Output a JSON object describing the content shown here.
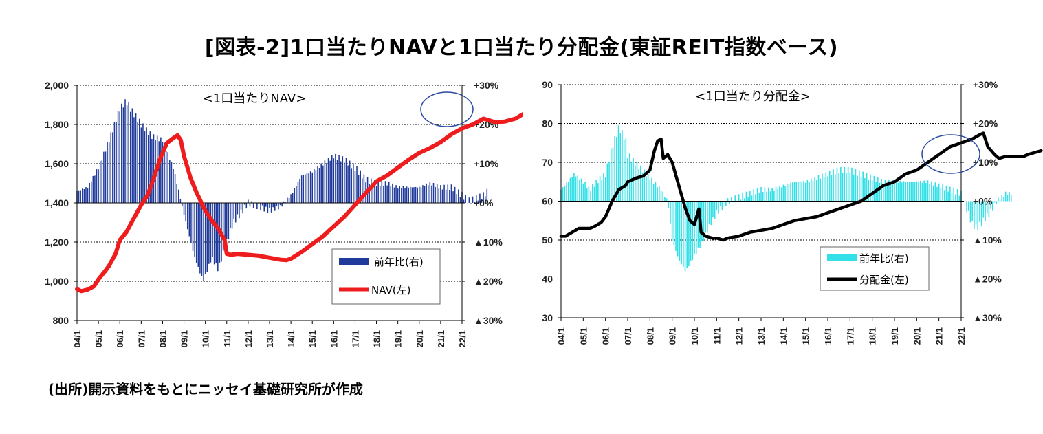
{
  "title": "[図表-2]1口当たりNAVと1口当たり分配金(東証REIT指数ベース)",
  "source": "(出所)開示資料をもとにニッセイ基礎研究所が作成",
  "colors": {
    "nav_line": "#ee1c1c",
    "nav_bar": "#1f3a9a",
    "dist_line": "#000000",
    "dist_bar": "#33e0e8",
    "circle": "#2a4aa0"
  },
  "chart_data": [
    {
      "type": "bar",
      "subtitle": "<1口当たりNAV>",
      "x_ticks": [
        "04/1",
        "05/1",
        "06/1",
        "07/1",
        "08/1",
        "09/1",
        "10/1",
        "11/1",
        "12/1",
        "13/1",
        "14/1",
        "15/1",
        "16/1",
        "17/1",
        "18/1",
        "19/1",
        "20/1",
        "21/1",
        "22/1"
      ],
      "y_left_ticks": [
        "2,000",
        "1,800",
        "1,600",
        "1,400",
        "1,200",
        "1,000",
        "800"
      ],
      "y_right_ticks": [
        "+30%",
        "+20%",
        "+10%",
        "+0%",
        "▲10%",
        "▲20%",
        "▲30%"
      ],
      "ylim_left": [
        800,
        2000
      ],
      "ylim_right": [
        -30,
        30
      ],
      "series": [
        {
          "name": "前年比(右)",
          "axis": "right",
          "type": "bar",
          "points": [
            [
              0,
              3
            ],
            [
              0.5,
              4
            ],
            [
              1.0,
              9
            ],
            [
              1.5,
              16
            ],
            [
              2.0,
              24
            ],
            [
              2.3,
              26
            ],
            [
              2.5,
              24
            ],
            [
              3.0,
              20
            ],
            [
              3.5,
              17
            ],
            [
              4.0,
              16
            ],
            [
              4.5,
              9
            ],
            [
              4.8,
              2
            ],
            [
              5.0,
              -3
            ],
            [
              5.5,
              -14
            ],
            [
              5.9,
              -20
            ],
            [
              6.3,
              -14
            ],
            [
              6.6,
              -17
            ],
            [
              7.0,
              -10
            ],
            [
              7.3,
              -5
            ],
            [
              7.6,
              -3
            ],
            [
              8.0,
              0
            ],
            [
              8.5,
              -1
            ],
            [
              9.0,
              -2
            ],
            [
              9.5,
              -1
            ],
            [
              10.0,
              2
            ],
            [
              10.5,
              7
            ],
            [
              11.0,
              8
            ],
            [
              11.5,
              10
            ],
            [
              12.0,
              12
            ],
            [
              12.5,
              11
            ],
            [
              13.0,
              9
            ],
            [
              13.5,
              6
            ],
            [
              14.0,
              5
            ],
            [
              14.5,
              5
            ],
            [
              15.0,
              4
            ],
            [
              15.5,
              4
            ],
            [
              16.0,
              4
            ],
            [
              16.5,
              5
            ],
            [
              17.0,
              4
            ],
            [
              17.5,
              4
            ],
            [
              18.0,
              2
            ],
            [
              18.3,
              0.5
            ],
            [
              18.6,
              1
            ],
            [
              19.0,
              2
            ],
            [
              19.2,
              3
            ]
          ]
        },
        {
          "name": "NAV(左)",
          "axis": "left",
          "type": "line",
          "points": [
            [
              0,
              960
            ],
            [
              0.2,
              950
            ],
            [
              0.5,
              958
            ],
            [
              0.8,
              975
            ],
            [
              1.0,
              1010
            ],
            [
              1.3,
              1050
            ],
            [
              1.5,
              1080
            ],
            [
              1.8,
              1140
            ],
            [
              2.0,
              1210
            ],
            [
              2.3,
              1250
            ],
            [
              2.6,
              1310
            ],
            [
              3.0,
              1390
            ],
            [
              3.3,
              1440
            ],
            [
              3.6,
              1530
            ],
            [
              3.9,
              1630
            ],
            [
              4.2,
              1705
            ],
            [
              4.5,
              1730
            ],
            [
              4.7,
              1745
            ],
            [
              4.85,
              1720
            ],
            [
              5.0,
              1640
            ],
            [
              5.3,
              1530
            ],
            [
              5.6,
              1450
            ],
            [
              6.0,
              1360
            ],
            [
              6.3,
              1310
            ],
            [
              6.6,
              1270
            ],
            [
              6.9,
              1210
            ],
            [
              7.0,
              1140
            ],
            [
              7.2,
              1135
            ],
            [
              7.5,
              1140
            ],
            [
              8.0,
              1135
            ],
            [
              8.5,
              1130
            ],
            [
              9.0,
              1120
            ],
            [
              9.5,
              1110
            ],
            [
              9.8,
              1108
            ],
            [
              10.0,
              1115
            ],
            [
              10.5,
              1150
            ],
            [
              11.0,
              1190
            ],
            [
              11.5,
              1230
            ],
            [
              12.0,
              1280
            ],
            [
              12.5,
              1330
            ],
            [
              13.0,
              1390
            ],
            [
              13.5,
              1450
            ],
            [
              14.0,
              1510
            ],
            [
              14.5,
              1540
            ],
            [
              15.0,
              1580
            ],
            [
              15.5,
              1620
            ],
            [
              16.0,
              1655
            ],
            [
              16.5,
              1680
            ],
            [
              17.0,
              1710
            ],
            [
              17.5,
              1750
            ],
            [
              18.0,
              1780
            ],
            [
              18.5,
              1800
            ],
            [
              19.0,
              1830
            ],
            [
              19.3,
              1820
            ],
            [
              19.6,
              1810
            ],
            [
              20.0,
              1815
            ],
            [
              20.5,
              1830
            ],
            [
              20.8,
              1850
            ],
            [
              21.0,
              1860
            ],
            [
              21.2,
              1875
            ],
            [
              21.5,
              1880
            ],
            [
              21.8,
              1875
            ]
          ]
        }
      ]
    },
    {
      "type": "bar",
      "subtitle": "<1口当たり分配金>",
      "x_ticks": [
        "04/1",
        "05/1",
        "06/1",
        "07/1",
        "08/1",
        "09/1",
        "10/1",
        "11/1",
        "12/1",
        "13/1",
        "14/1",
        "15/1",
        "16/1",
        "17/1",
        "18/1",
        "19/1",
        "20/1",
        "21/1",
        "22/1"
      ],
      "y_left_ticks": [
        "90",
        "80",
        "70",
        "60",
        "50",
        "40",
        "30"
      ],
      "y_right_ticks": [
        "+30%",
        "+20%",
        "+10%",
        "+0%",
        "▲10%",
        "▲20%",
        "▲30%"
      ],
      "ylim_left": [
        30,
        90
      ],
      "ylim_right": [
        -30,
        30
      ],
      "series": [
        {
          "name": "前年比(右)",
          "axis": "right",
          "type": "bar",
          "points": [
            [
              0,
              3
            ],
            [
              0.3,
              5
            ],
            [
              0.6,
              7
            ],
            [
              1.0,
              5
            ],
            [
              1.3,
              3
            ],
            [
              1.6,
              5
            ],
            [
              2.0,
              7
            ],
            [
              2.3,
              14
            ],
            [
              2.6,
              19
            ],
            [
              2.9,
              16
            ],
            [
              3.0,
              12
            ],
            [
              3.5,
              9
            ],
            [
              4.0,
              6
            ],
            [
              4.5,
              3
            ],
            [
              4.8,
              0
            ],
            [
              5.0,
              -10
            ],
            [
              5.3,
              -15
            ],
            [
              5.6,
              -18
            ],
            [
              6.0,
              -14
            ],
            [
              6.4,
              -10
            ],
            [
              6.7,
              -6
            ],
            [
              7.0,
              -3
            ],
            [
              7.5,
              0
            ],
            [
              8.0,
              1
            ],
            [
              8.5,
              2
            ],
            [
              9.0,
              3
            ],
            [
              9.5,
              3
            ],
            [
              10.0,
              4
            ],
            [
              10.5,
              5
            ],
            [
              11.0,
              5
            ],
            [
              11.5,
              6
            ],
            [
              12.0,
              7
            ],
            [
              12.5,
              8
            ],
            [
              13.0,
              8
            ],
            [
              13.5,
              7
            ],
            [
              14.0,
              6
            ],
            [
              14.5,
              5
            ],
            [
              15.0,
              5
            ],
            [
              15.5,
              5
            ],
            [
              16.0,
              5
            ],
            [
              16.5,
              5
            ],
            [
              17.0,
              4
            ],
            [
              17.5,
              3
            ],
            [
              18.0,
              2
            ],
            [
              18.5,
              -6
            ],
            [
              18.7,
              -7
            ],
            [
              19.0,
              -5
            ],
            [
              19.3,
              -3
            ],
            [
              19.6,
              0
            ],
            [
              20.0,
              2
            ],
            [
              20.3,
              2
            ]
          ]
        },
        {
          "name": "分配金(左)",
          "axis": "left",
          "type": "line",
          "points": [
            [
              0,
              51
            ],
            [
              0.2,
              51
            ],
            [
              0.5,
              52
            ],
            [
              0.8,
              53
            ],
            [
              1.0,
              53
            ],
            [
              1.3,
              53
            ],
            [
              1.5,
              53.5
            ],
            [
              1.8,
              54.5
            ],
            [
              2.0,
              56
            ],
            [
              2.3,
              60
            ],
            [
              2.6,
              63
            ],
            [
              2.9,
              64
            ],
            [
              3.0,
              65
            ],
            [
              3.4,
              66
            ],
            [
              3.7,
              66.5
            ],
            [
              4.0,
              68
            ],
            [
              4.2,
              73
            ],
            [
              4.35,
              75.5
            ],
            [
              4.5,
              76
            ],
            [
              4.6,
              71
            ],
            [
              4.8,
              72
            ],
            [
              5.0,
              70
            ],
            [
              5.2,
              66
            ],
            [
              5.4,
              62
            ],
            [
              5.6,
              58
            ],
            [
              5.8,
              55
            ],
            [
              6.0,
              54
            ],
            [
              6.2,
              58
            ],
            [
              6.3,
              52
            ],
            [
              6.5,
              51
            ],
            [
              6.8,
              50.5
            ],
            [
              7.0,
              50.5
            ],
            [
              7.3,
              50
            ],
            [
              7.5,
              50.5
            ],
            [
              8.0,
              51
            ],
            [
              8.5,
              52
            ],
            [
              9.0,
              52.5
            ],
            [
              9.5,
              53
            ],
            [
              10.0,
              54
            ],
            [
              10.5,
              55
            ],
            [
              11.0,
              55.5
            ],
            [
              11.5,
              56
            ],
            [
              12.0,
              57
            ],
            [
              12.5,
              58
            ],
            [
              13.0,
              59
            ],
            [
              13.5,
              60
            ],
            [
              14.0,
              62
            ],
            [
              14.5,
              64
            ],
            [
              15.0,
              65
            ],
            [
              15.5,
              67
            ],
            [
              16.0,
              68
            ],
            [
              16.5,
              70
            ],
            [
              17.0,
              72
            ],
            [
              17.5,
              74
            ],
            [
              18.0,
              75
            ],
            [
              18.5,
              76
            ],
            [
              18.8,
              77
            ],
            [
              19.0,
              77.5
            ],
            [
              19.2,
              74
            ],
            [
              19.5,
              72
            ],
            [
              19.7,
              71
            ],
            [
              20.0,
              71.5
            ],
            [
              20.5,
              71.5
            ],
            [
              20.8,
              71.5
            ],
            [
              21.0,
              72
            ],
            [
              21.3,
              72.5
            ],
            [
              21.6,
              73
            ]
          ]
        }
      ]
    }
  ]
}
